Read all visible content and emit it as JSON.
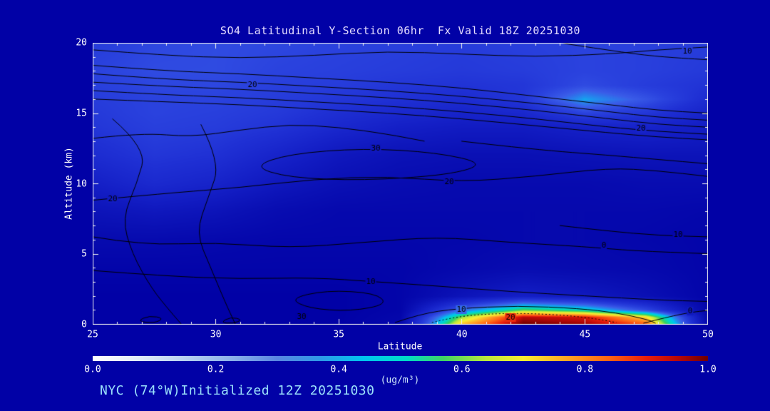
{
  "colors": {
    "background": "#0101a6",
    "title": "#e4dcff",
    "axis_text": "#ffffff",
    "footer": "#9be1fb",
    "unit_label": "#cfe9fb",
    "frame": "#f0f0f0",
    "contour": "#000000"
  },
  "chart_data": {
    "type": "heatmap",
    "title": "SO4 Latitudinal Y-Section 06hr  Fx Valid 18Z 20251030",
    "xlabel": "Latitude",
    "ylabel": "Altitude (km)",
    "xlim": [
      25,
      50
    ],
    "ylim": [
      0,
      20
    ],
    "x_ticks": [
      "25",
      "30",
      "35",
      "40",
      "45",
      "50"
    ],
    "y_ticks": [
      "0",
      "5",
      "10",
      "15",
      "20"
    ],
    "legend": "none",
    "grid_lines": "off",
    "grid": {
      "lats": [
        25,
        27.5,
        30,
        32.5,
        35,
        37.5,
        40,
        42.5,
        45,
        47.5,
        50
      ],
      "alts": [
        0,
        0.5,
        1,
        2,
        4,
        6,
        8,
        10,
        12,
        14,
        15,
        16,
        17,
        18,
        20
      ],
      "values": [
        [
          0,
          0,
          0,
          0,
          0,
          0.04,
          0.75,
          1.0,
          0.97,
          0.85,
          0.05
        ],
        [
          0,
          0,
          0,
          0,
          0,
          0.03,
          0.62,
          0.95,
          0.92,
          0.72,
          0.04
        ],
        [
          0,
          0,
          0,
          0,
          0,
          0.02,
          0.38,
          0.6,
          0.52,
          0.32,
          0.03
        ],
        [
          0,
          0,
          0,
          0,
          0,
          0.02,
          0.1,
          0.16,
          0.13,
          0.08,
          0.02
        ],
        [
          0.02,
          0.02,
          0.02,
          0.02,
          0.02,
          0.02,
          0.04,
          0.06,
          0.05,
          0.04,
          0.02
        ],
        [
          0.05,
          0.05,
          0.04,
          0.03,
          0.03,
          0.03,
          0.03,
          0.04,
          0.04,
          0.03,
          0.02
        ],
        [
          0.1,
          0.12,
          0.1,
          0.06,
          0.04,
          0.04,
          0.04,
          0.04,
          0.04,
          0.04,
          0.03
        ],
        [
          0.16,
          0.21,
          0.18,
          0.12,
          0.08,
          0.06,
          0.05,
          0.05,
          0.05,
          0.06,
          0.06
        ],
        [
          0.22,
          0.26,
          0.24,
          0.18,
          0.12,
          0.09,
          0.08,
          0.08,
          0.09,
          0.1,
          0.1
        ],
        [
          0.26,
          0.29,
          0.28,
          0.25,
          0.2,
          0.16,
          0.14,
          0.14,
          0.17,
          0.18,
          0.15
        ],
        [
          0.27,
          0.3,
          0.29,
          0.27,
          0.23,
          0.2,
          0.18,
          0.2,
          0.3,
          0.26,
          0.18
        ],
        [
          0.28,
          0.3,
          0.3,
          0.28,
          0.26,
          0.24,
          0.22,
          0.26,
          0.44,
          0.34,
          0.22
        ],
        [
          0.29,
          0.31,
          0.31,
          0.29,
          0.28,
          0.26,
          0.25,
          0.26,
          0.32,
          0.28,
          0.25
        ],
        [
          0.3,
          0.32,
          0.32,
          0.3,
          0.29,
          0.28,
          0.27,
          0.28,
          0.3,
          0.29,
          0.27
        ],
        [
          0.28,
          0.31,
          0.32,
          0.31,
          0.3,
          0.29,
          0.28,
          0.29,
          0.3,
          0.29,
          0.28
        ]
      ]
    },
    "plot_colormap": [
      [
        0.0,
        "#0101a6"
      ],
      [
        0.08,
        "#0a10b4"
      ],
      [
        0.16,
        "#141fc6"
      ],
      [
        0.24,
        "#1f30d4"
      ],
      [
        0.3,
        "#2a42de"
      ],
      [
        0.36,
        "#3a5ce8"
      ],
      [
        0.42,
        "#2090ee"
      ],
      [
        0.46,
        "#00c2f0"
      ],
      [
        0.52,
        "#00d8c0"
      ],
      [
        0.58,
        "#34d060"
      ],
      [
        0.64,
        "#bce83c"
      ],
      [
        0.7,
        "#f8ee32"
      ],
      [
        0.77,
        "#ffa626"
      ],
      [
        0.84,
        "#ff6214"
      ],
      [
        0.9,
        "#e81e0c"
      ],
      [
        0.95,
        "#b80808"
      ],
      [
        1.0,
        "#6e0000"
      ]
    ],
    "contours": {
      "lines": [
        {
          "points": [
            [
              25,
              18.4
            ],
            [
              28,
              18.0
            ],
            [
              31,
              17.8
            ],
            [
              34,
              17.5
            ],
            [
              37,
              17.2
            ],
            [
              40,
              16.8
            ],
            [
              43,
              16.2
            ],
            [
              46,
              15.6
            ],
            [
              48,
              15.2
            ],
            [
              50,
              15.0
            ]
          ]
        },
        {
          "points": [
            [
              25,
              17.8
            ],
            [
              28,
              17.4
            ],
            [
              31,
              17.2
            ],
            [
              34,
              16.9
            ],
            [
              37,
              16.6
            ],
            [
              40,
              16.2
            ],
            [
              43,
              15.7
            ],
            [
              46,
              15.1
            ],
            [
              48,
              14.7
            ],
            [
              50,
              14.5
            ]
          ]
        },
        {
          "points": [
            [
              25,
              17.2
            ],
            [
              28,
              16.9
            ],
            [
              31,
              16.7
            ],
            [
              34,
              16.4
            ],
            [
              37,
              16.1
            ],
            [
              40,
              15.7
            ],
            [
              43,
              15.2
            ],
            [
              46,
              14.6
            ],
            [
              48,
              14.2
            ],
            [
              50,
              14.0
            ]
          ]
        },
        {
          "points": [
            [
              25,
              16.6
            ],
            [
              28,
              16.3
            ],
            [
              31,
              16.1
            ],
            [
              34,
              15.8
            ],
            [
              37,
              15.5
            ],
            [
              40,
              15.1
            ],
            [
              43,
              14.6
            ],
            [
              46,
              14.0
            ],
            [
              48,
              13.7
            ],
            [
              50,
              13.5
            ]
          ]
        },
        {
          "points": [
            [
              25,
              16.0
            ],
            [
              28,
              15.8
            ],
            [
              31,
              15.6
            ],
            [
              34,
              15.3
            ],
            [
              37,
              15.0
            ],
            [
              40,
              14.6
            ],
            [
              43,
              14.1
            ],
            [
              46,
              13.6
            ],
            [
              48,
              13.3
            ],
            [
              50,
              13.1
            ]
          ]
        },
        {
          "points": [
            [
              25,
              19.5
            ],
            [
              28,
              19.1
            ],
            [
              31,
              18.9
            ],
            [
              34,
              19.1
            ],
            [
              37,
              19.4
            ],
            [
              40,
              19.2
            ],
            [
              43,
              19.0
            ],
            [
              46,
              19.2
            ],
            [
              48,
              19.5
            ],
            [
              50,
              19.7
            ]
          ]
        },
        {
          "points": [
            [
              44,
              20
            ],
            [
              45.5,
              19.6
            ],
            [
              47.5,
              19.1
            ],
            [
              49,
              18.9
            ],
            [
              50,
              18.8
            ]
          ]
        },
        {
          "points": [
            [
              25.8,
              14.6
            ],
            [
              27.2,
              12.5
            ],
            [
              26.8,
              10.0
            ],
            [
              26.2,
              7.5
            ],
            [
              26.6,
              5.0
            ],
            [
              27.4,
              2.5
            ],
            [
              28.2,
              0.8
            ],
            [
              28.6,
              0
            ]
          ]
        },
        {
          "points": [
            [
              29.4,
              14.2
            ],
            [
              30.2,
              11.5
            ],
            [
              29.7,
              9.0
            ],
            [
              29.2,
              6.5
            ],
            [
              29.8,
              4.0
            ],
            [
              30.4,
              1.5
            ],
            [
              30.8,
              0
            ]
          ]
        },
        {
          "points": [
            [
              25,
              13.2
            ],
            [
              27,
              13.6
            ],
            [
              29,
              13.3
            ],
            [
              31,
              13.8
            ],
            [
              33,
              14.2
            ],
            [
              35,
              14.0
            ],
            [
              37,
              13.5
            ],
            [
              38.5,
              13.0
            ]
          ]
        },
        {
          "points": [
            [
              31.5,
              11.2
            ],
            [
              33,
              12.1
            ],
            [
              36,
              12.5
            ],
            [
              39,
              12.2
            ],
            [
              41,
              11.4
            ],
            [
              39.5,
              10.6
            ],
            [
              36,
              10.2
            ],
            [
              33,
              10.4
            ]
          ],
          "closed": true
        },
        {
          "points": [
            [
              25,
              8.8
            ],
            [
              28,
              9.3
            ],
            [
              31,
              9.7
            ],
            [
              34,
              10.3
            ],
            [
              37,
              10.5
            ],
            [
              40,
              10.1
            ],
            [
              43,
              10.5
            ],
            [
              46,
              11.1
            ],
            [
              48,
              10.9
            ],
            [
              50,
              10.5
            ]
          ]
        },
        {
          "points": [
            [
              40,
              13.0
            ],
            [
              43,
              12.4
            ],
            [
              46,
              12.0
            ],
            [
              48,
              11.7
            ],
            [
              50,
              11.4
            ]
          ]
        },
        {
          "points": [
            [
              25,
              6.2
            ],
            [
              27,
              5.6
            ],
            [
              30,
              5.8
            ],
            [
              33,
              5.4
            ],
            [
              36,
              5.8
            ],
            [
              39,
              6.2
            ],
            [
              42,
              5.8
            ],
            [
              45,
              5.5
            ],
            [
              47,
              5.2
            ],
            [
              50,
              5.0
            ]
          ]
        },
        {
          "points": [
            [
              44,
              7.0
            ],
            [
              46,
              6.6
            ],
            [
              48,
              6.3
            ],
            [
              50,
              6.2
            ]
          ]
        },
        {
          "points": [
            [
              25,
              3.8
            ],
            [
              28,
              3.4
            ],
            [
              31,
              3.2
            ],
            [
              34,
              3.3
            ],
            [
              36.5,
              3.0
            ],
            [
              39,
              2.7
            ],
            [
              42,
              2.3
            ],
            [
              45,
              2.0
            ],
            [
              48,
              1.7
            ],
            [
              50,
              1.6
            ]
          ]
        },
        {
          "points": [
            [
              33,
              1.8
            ],
            [
              34.5,
              2.4
            ],
            [
              36.5,
              2.2
            ],
            [
              37,
              1.4
            ],
            [
              35.5,
              0.9
            ],
            [
              33.8,
              1.1
            ]
          ],
          "closed": true
        },
        {
          "points": [
            [
              37.3,
              0.1
            ],
            [
              38.3,
              0.7
            ],
            [
              39.8,
              1.1
            ],
            [
              42.3,
              1.3
            ],
            [
              44.8,
              1.1
            ],
            [
              46.3,
              0.8
            ],
            [
              47.6,
              0.3
            ],
            [
              47.9,
              0.05
            ]
          ]
        },
        {
          "points": [
            [
              38.8,
              0.1
            ],
            [
              39.8,
              0.55
            ],
            [
              41.8,
              0.78
            ],
            [
              43.8,
              0.68
            ],
            [
              45.3,
              0.42
            ],
            [
              46.3,
              0.1
            ]
          ],
          "dashed": true
        },
        {
          "points": [
            [
              47.4,
              0.05
            ],
            [
              48.4,
              0.5
            ],
            [
              49.4,
              0.85
            ],
            [
              50,
              0.95
            ]
          ]
        },
        {
          "points": [
            [
              26.8,
              0.2
            ],
            [
              27.3,
              0.6
            ],
            [
              27.9,
              0.4
            ],
            [
              27.5,
              0.05
            ]
          ],
          "closed": true
        },
        {
          "points": [
            [
              30.2,
              0.1
            ],
            [
              30.6,
              0.5
            ],
            [
              31.1,
              0.3
            ],
            [
              30.7,
              0.02
            ]
          ],
          "closed": true
        }
      ],
      "labels": [
        {
          "text": "20",
          "lat": 31.5,
          "alt": 17.0
        },
        {
          "text": "20",
          "lat": 47.3,
          "alt": 13.9
        },
        {
          "text": "10",
          "lat": 49.2,
          "alt": 19.4
        },
        {
          "text": "30",
          "lat": 36.5,
          "alt": 12.5
        },
        {
          "text": "20",
          "lat": 25.8,
          "alt": 8.9
        },
        {
          "text": "20",
          "lat": 39.5,
          "alt": 10.1
        },
        {
          "text": "10",
          "lat": 36.3,
          "alt": 3.0
        },
        {
          "text": "10",
          "lat": 48.8,
          "alt": 6.35
        },
        {
          "text": "0",
          "lat": 45.8,
          "alt": 5.6
        },
        {
          "text": "10",
          "lat": 40.0,
          "alt": 1.0
        },
        {
          "text": "20",
          "lat": 42.0,
          "alt": 0.45
        },
        {
          "text": "30",
          "lat": 33.5,
          "alt": 0.5
        },
        {
          "text": "0",
          "lat": 49.3,
          "alt": 0.9
        }
      ]
    },
    "colorbar": {
      "ticks": [
        "0.0",
        "0.2",
        "0.4",
        "0.6",
        "0.8",
        "1.0"
      ],
      "unit": "(ug/m³)",
      "stops": [
        [
          0.0,
          "#ffffff"
        ],
        [
          0.07,
          "#e4eef9"
        ],
        [
          0.15,
          "#b8d2f1"
        ],
        [
          0.23,
          "#8ab0ea"
        ],
        [
          0.3,
          "#5a86e2"
        ],
        [
          0.37,
          "#2f9ae8"
        ],
        [
          0.44,
          "#00c6f0"
        ],
        [
          0.51,
          "#00dcc8"
        ],
        [
          0.57,
          "#40d464"
        ],
        [
          0.64,
          "#bce83c"
        ],
        [
          0.7,
          "#f8ee32"
        ],
        [
          0.77,
          "#ffa626"
        ],
        [
          0.84,
          "#ff6214"
        ],
        [
          0.9,
          "#e81e0c"
        ],
        [
          0.95,
          "#b80808"
        ],
        [
          1.0,
          "#6e0000"
        ]
      ]
    },
    "footer": "NYC (74°W)Initialized 12Z 20251030"
  }
}
